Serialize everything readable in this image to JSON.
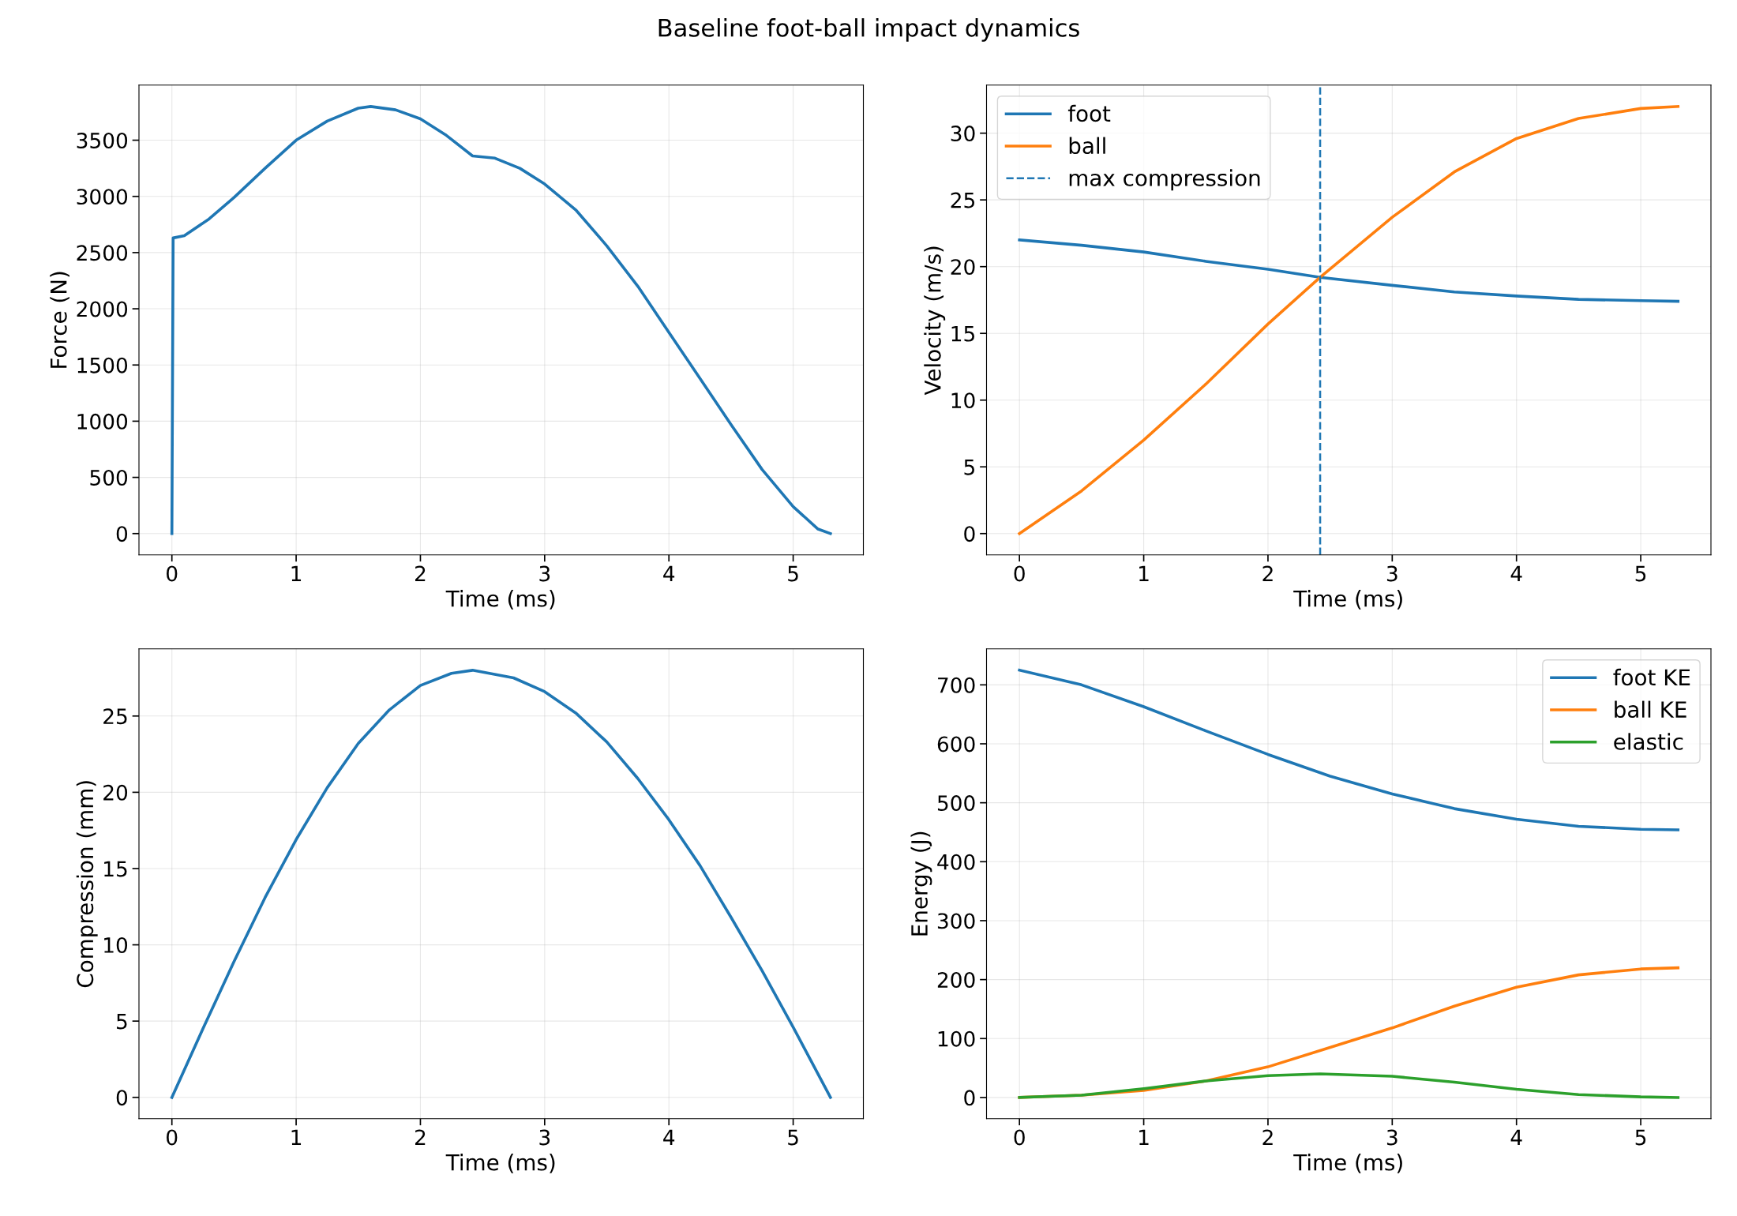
{
  "chart_data": [
    {
      "type": "line",
      "title": "Baseline foot-ball impact dynamics",
      "xlabel": "Time (ms)",
      "ylabel": "Force (N)",
      "xlim": [
        -0.265,
        5.565
      ],
      "ylim": [
        -190,
        3990
      ],
      "xticks": [
        0,
        1,
        2,
        3,
        4,
        5
      ],
      "yticks": [
        0,
        500,
        1000,
        1500,
        2000,
        2500,
        3000,
        3500
      ],
      "grid": true,
      "series": [
        {
          "color": "#1f77b4",
          "x": [
            0,
            0.01,
            0.1,
            0.3,
            0.5,
            0.75,
            1.0,
            1.25,
            1.5,
            1.6,
            1.8,
            2.0,
            2.2,
            2.42,
            2.6,
            2.8,
            3.0,
            3.25,
            3.5,
            3.75,
            4.0,
            4.25,
            4.5,
            4.75,
            5.0,
            5.2,
            5.3
          ],
          "values": [
            0,
            2630,
            2650,
            2800,
            2990,
            3250,
            3500,
            3670,
            3785,
            3800,
            3770,
            3690,
            3550,
            3360,
            3340,
            3250,
            3110,
            2880,
            2560,
            2200,
            1790,
            1380,
            970,
            570,
            240,
            40,
            0
          ]
        }
      ]
    },
    {
      "type": "line",
      "xlabel": "Time (ms)",
      "ylabel": "Velocity (m/s)",
      "xlim": [
        -0.265,
        5.565
      ],
      "ylim": [
        -1.6,
        33.6
      ],
      "xticks": [
        0,
        1,
        2,
        3,
        4,
        5
      ],
      "yticks": [
        0,
        5,
        10,
        15,
        20,
        25,
        30
      ],
      "grid": true,
      "legend": "top left",
      "series": [
        {
          "name": "foot",
          "color": "#1f77b4",
          "x": [
            0,
            0.5,
            1,
            1.5,
            2,
            2.42,
            3,
            3.5,
            4,
            4.5,
            5,
            5.3
          ],
          "values": [
            22,
            21.6,
            21.1,
            20.4,
            19.8,
            19.2,
            18.6,
            18.1,
            17.8,
            17.55,
            17.45,
            17.4
          ]
        },
        {
          "name": "ball",
          "color": "#ff7f0e",
          "x": [
            0,
            0.5,
            1,
            1.5,
            2,
            2.42,
            3,
            3.5,
            4,
            4.5,
            5,
            5.3
          ],
          "values": [
            0,
            3.2,
            7.0,
            11.2,
            15.7,
            19.2,
            23.7,
            27.1,
            29.6,
            31.1,
            31.85,
            32
          ]
        }
      ],
      "ref_lines": [
        {
          "axis": "x",
          "value": 2.42,
          "label": "max compression",
          "color": "#1f77b4",
          "line_style": "dashed"
        }
      ]
    },
    {
      "type": "line",
      "xlabel": "Time (ms)",
      "ylabel": "Compression (mm)",
      "xlim": [
        -0.265,
        5.565
      ],
      "ylim": [
        -1.4,
        29.4
      ],
      "xticks": [
        0,
        1,
        2,
        3,
        4,
        5
      ],
      "yticks": [
        0,
        5,
        10,
        15,
        20,
        25
      ],
      "grid": true,
      "series": [
        {
          "color": "#1f77b4",
          "x": [
            0,
            0.25,
            0.5,
            0.75,
            1,
            1.25,
            1.5,
            1.75,
            2,
            2.25,
            2.42,
            2.75,
            3,
            3.25,
            3.5,
            3.75,
            4,
            4.25,
            4.5,
            4.75,
            5,
            5.3
          ],
          "values": [
            0,
            4.5,
            8.9,
            13.1,
            16.9,
            20.3,
            23.2,
            25.4,
            27.0,
            27.8,
            28,
            27.5,
            26.6,
            25.2,
            23.3,
            20.9,
            18.2,
            15.2,
            11.8,
            8.3,
            4.6,
            0
          ]
        }
      ]
    },
    {
      "type": "line",
      "xlabel": "Time (ms)",
      "ylabel": "Energy (J)",
      "xlim": [
        -0.265,
        5.565
      ],
      "ylim": [
        -36,
        761
      ],
      "xticks": [
        0,
        1,
        2,
        3,
        4,
        5
      ],
      "yticks": [
        0,
        100,
        200,
        300,
        400,
        500,
        600,
        700
      ],
      "grid": true,
      "legend": "top right",
      "series": [
        {
          "name": "foot KE",
          "color": "#1f77b4",
          "x": [
            0,
            0.5,
            1,
            1.5,
            2,
            2.5,
            3,
            3.5,
            4,
            4.5,
            5,
            5.3
          ],
          "values": [
            725,
            700,
            663,
            622,
            582,
            545,
            515,
            490,
            472,
            460,
            455,
            454
          ]
        },
        {
          "name": "ball KE",
          "color": "#ff7f0e",
          "x": [
            0,
            0.5,
            1,
            1.5,
            2,
            2.5,
            3,
            3.5,
            4,
            4.5,
            5,
            5.3
          ],
          "values": [
            0,
            4,
            12,
            28,
            52,
            85,
            118,
            155,
            187,
            208,
            218,
            220
          ]
        },
        {
          "name": "elastic",
          "color": "#2ca02c",
          "x": [
            0,
            0.5,
            1,
            1.5,
            2,
            2.42,
            3,
            3.5,
            4,
            4.5,
            5,
            5.3
          ],
          "values": [
            0,
            4,
            15,
            28,
            37,
            40,
            36,
            26,
            14,
            5,
            1,
            0
          ]
        }
      ]
    }
  ]
}
